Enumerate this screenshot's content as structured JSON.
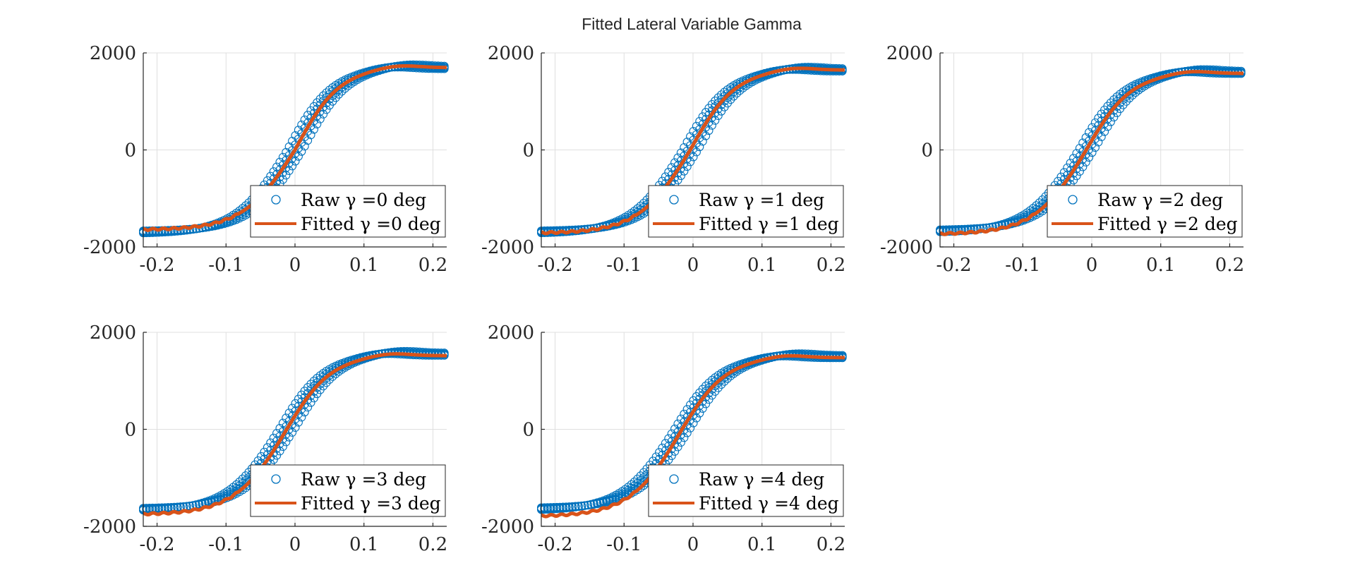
{
  "figure_title": "Fitted Lateral Variable Gamma",
  "colors": {
    "raw": "#0072BD",
    "fitted": "#D95319",
    "grid": "#dfdfdf",
    "axis": "#262626"
  },
  "chart_data": [
    {
      "type": "scatter",
      "gamma_deg": 0,
      "xlim": [
        -0.22,
        0.22
      ],
      "ylim": [
        -2000,
        2000
      ],
      "xticks": [
        "-0.2",
        "-0.1",
        "0",
        "0.1",
        "0.2"
      ],
      "yticks": [
        "-2000",
        "0",
        "2000"
      ],
      "grid": true,
      "legend_location": "bottom-right",
      "series": [
        {
          "name": "Raw γ =0 deg",
          "style": "markers",
          "plateau_pos": 1700,
          "plateau_neg": -1700,
          "x_shift": 0.0,
          "spread": 0.012
        },
        {
          "name": "Fitted γ =0 deg",
          "style": "line",
          "plateau_pos": 1700,
          "plateau_neg": -1650,
          "x_shift": 0.0
        }
      ]
    },
    {
      "type": "scatter",
      "gamma_deg": 1,
      "xlim": [
        -0.22,
        0.22
      ],
      "ylim": [
        -2000,
        2000
      ],
      "xticks": [
        "-0.2",
        "-0.1",
        "0",
        "0.1",
        "0.2"
      ],
      "yticks": [
        "-2000",
        "0",
        "2000"
      ],
      "grid": true,
      "legend_location": "bottom-right",
      "series": [
        {
          "name": "Raw γ =1 deg",
          "style": "markers",
          "plateau_pos": 1650,
          "plateau_neg": -1700,
          "x_shift": -0.004,
          "spread": 0.012
        },
        {
          "name": "Fitted γ =1 deg",
          "style": "line",
          "plateau_pos": 1650,
          "plateau_neg": -1720,
          "x_shift": -0.004
        }
      ]
    },
    {
      "type": "scatter",
      "gamma_deg": 2,
      "xlim": [
        -0.22,
        0.22
      ],
      "ylim": [
        -2000,
        2000
      ],
      "xticks": [
        "-0.2",
        "-0.1",
        "0",
        "0.1",
        "0.2"
      ],
      "yticks": [
        "-2000",
        "0",
        "2000"
      ],
      "grid": true,
      "legend_location": "bottom-right",
      "series": [
        {
          "name": "Raw γ =2 deg",
          "style": "markers",
          "plateau_pos": 1600,
          "plateau_neg": -1680,
          "x_shift": -0.008,
          "spread": 0.012
        },
        {
          "name": "Fitted γ =2 deg",
          "style": "line",
          "plateau_pos": 1580,
          "plateau_neg": -1740,
          "x_shift": -0.008
        }
      ]
    },
    {
      "type": "scatter",
      "gamma_deg": 3,
      "xlim": [
        -0.22,
        0.22
      ],
      "ylim": [
        -2000,
        2000
      ],
      "xticks": [
        "-0.2",
        "-0.1",
        "0",
        "0.1",
        "0.2"
      ],
      "yticks": [
        "-2000",
        "0",
        "2000"
      ],
      "grid": true,
      "legend_location": "bottom-right",
      "series": [
        {
          "name": "Raw γ =3 deg",
          "style": "markers",
          "plateau_pos": 1550,
          "plateau_neg": -1660,
          "x_shift": -0.012,
          "spread": 0.012
        },
        {
          "name": "Fitted γ =3 deg",
          "style": "line",
          "plateau_pos": 1520,
          "plateau_neg": -1760,
          "x_shift": -0.012
        }
      ]
    },
    {
      "type": "scatter",
      "gamma_deg": 4,
      "xlim": [
        -0.22,
        0.22
      ],
      "ylim": [
        -2000,
        2000
      ],
      "xticks": [
        "-0.2",
        "-0.1",
        "0",
        "0.1",
        "0.2"
      ],
      "yticks": [
        "-2000",
        "0",
        "2000"
      ],
      "grid": true,
      "legend_location": "bottom-right",
      "series": [
        {
          "name": "Raw γ =4 deg",
          "style": "markers",
          "plateau_pos": 1500,
          "plateau_neg": -1650,
          "x_shift": -0.016,
          "spread": 0.012
        },
        {
          "name": "Fitted γ =4 deg",
          "style": "line",
          "plateau_pos": 1480,
          "plateau_neg": -1800,
          "x_shift": -0.016
        }
      ]
    }
  ]
}
